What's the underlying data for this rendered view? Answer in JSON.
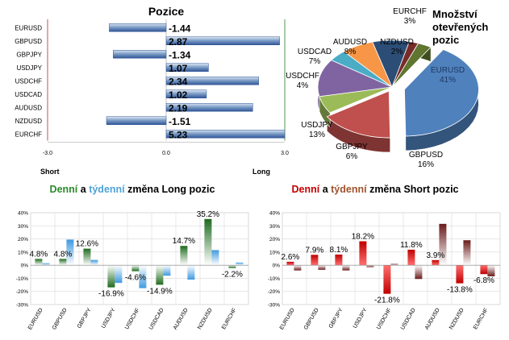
{
  "chart_data": [
    {
      "type": "bar",
      "orientation": "horizontal",
      "title": "Pozice",
      "categories": [
        "EURUSD",
        "GBPUSD",
        "GBPJPY",
        "USDJPY",
        "USDCHF",
        "USDCAD",
        "AUDUSD",
        "NZDUSD",
        "EURCHF"
      ],
      "values": [
        -1.44,
        2.87,
        -1.34,
        1.07,
        2.34,
        1.02,
        2.19,
        -1.51,
        5.23
      ],
      "value_labels": [
        "-1.44",
        "2.87",
        "-1.34",
        "1.07",
        "2.34",
        "1.02",
        "2.19",
        "-1.51",
        "5.23"
      ],
      "xlim": [
        -3,
        3
      ],
      "xticks": [
        "-3.0",
        "0.0",
        "3.0"
      ],
      "left_label": "Short",
      "right_label": "Long",
      "color": "#4f81bd"
    },
    {
      "type": "pie",
      "title_lines": [
        "Množství",
        "otevřených",
        "pozic"
      ],
      "slices": [
        {
          "label": "EURUSD",
          "value": 41,
          "text": "41%",
          "color": "#4f81bd"
        },
        {
          "label": "GBPUSD",
          "value": 16,
          "text": "16%",
          "color": "#c0504d"
        },
        {
          "label": "GBPJPY",
          "value": 6,
          "text": "6%",
          "color": "#9bbb59"
        },
        {
          "label": "USDJPY",
          "value": 13,
          "text": "13%",
          "color": "#8064a2"
        },
        {
          "label": "USDCHF",
          "value": 4,
          "text": "4%",
          "color": "#4bacc6"
        },
        {
          "label": "USDCAD",
          "value": 7,
          "text": "7%",
          "color": "#f79646"
        },
        {
          "label": "AUDUSD",
          "value": 8,
          "text": "8%",
          "color": "#2c4d75"
        },
        {
          "label": "NZDUSD",
          "value": 2,
          "text": "2%",
          "color": "#772c2a"
        },
        {
          "label": "EURCHF",
          "value": 3,
          "text": "3%",
          "color": "#5f7530"
        }
      ]
    },
    {
      "type": "bar",
      "title_parts": [
        {
          "text": "Denní",
          "color": "#2a8a2a"
        },
        {
          "text": " a ",
          "color": "#000000"
        },
        {
          "text": "týdenní",
          "color": "#4fa3d9"
        },
        {
          "text": " změna Long pozic",
          "color": "#000000"
        }
      ],
      "categories": [
        "EURUSD",
        "GBPUSD",
        "GBPJPY",
        "USDJPY",
        "USDCHF",
        "USDCAD",
        "AUDUSD",
        "NZDUSD",
        "EURCHF"
      ],
      "series": [
        {
          "name": "Denní",
          "color": "#3e8e3e",
          "values": [
            4.8,
            4.8,
            12.6,
            -16.9,
            -4.6,
            -14.9,
            14.7,
            35.2,
            -2.2
          ]
        },
        {
          "name": "Týdenní",
          "color": "#6fb6ea",
          "values": [
            1.5,
            19.5,
            4.0,
            -13.5,
            -17.5,
            -8.0,
            -11.0,
            11.5,
            2.0
          ]
        }
      ],
      "data_labels": [
        {
          "index": 0,
          "text": "4.8%"
        },
        {
          "index": 1,
          "text": "4.8%"
        },
        {
          "index": 2,
          "text": "12.6%"
        },
        {
          "index": 3,
          "text": "-16.9%"
        },
        {
          "index": 4,
          "text": "-4.6%"
        },
        {
          "index": 5,
          "text": "-14.9%"
        },
        {
          "index": 6,
          "text": "14.7%"
        },
        {
          "index": 7,
          "text": "35.2%"
        },
        {
          "index": 8,
          "text": "-2.2%"
        }
      ],
      "ylim": [
        -30,
        40
      ],
      "yticks": [
        "40%",
        "30%",
        "20%",
        "10%",
        "0%",
        "-10%",
        "-20%",
        "-30%"
      ]
    },
    {
      "type": "bar",
      "title_parts": [
        {
          "text": "Denní",
          "color": "#c00000"
        },
        {
          "text": " a ",
          "color": "#000000"
        },
        {
          "text": "týdenní",
          "color": "#a0522d"
        },
        {
          "text": " změna Short pozic",
          "color": "#000000"
        }
      ],
      "categories": [
        "EURUSD",
        "GBPUSD",
        "GBPJPY",
        "USDJPY",
        "USDCHF",
        "USDCAD",
        "AUDUSD",
        "NZDUSD",
        "EURCHF"
      ],
      "series": [
        {
          "name": "Denní",
          "color": "#c00000",
          "values": [
            2.6,
            7.9,
            8.1,
            18.2,
            -21.8,
            11.8,
            3.9,
            -13.8,
            -6.8
          ]
        },
        {
          "name": "Týdenní",
          "color": "#8b3a3a",
          "values": [
            -4.0,
            -3.5,
            -4.0,
            -1.5,
            1.0,
            -10.5,
            31.5,
            19.0,
            -8.5
          ]
        }
      ],
      "data_labels": [
        {
          "index": 0,
          "text": "2.6%"
        },
        {
          "index": 1,
          "text": "7.9%"
        },
        {
          "index": 2,
          "text": "8.1%"
        },
        {
          "index": 3,
          "text": "18.2%"
        },
        {
          "index": 4,
          "text": "-21.8%"
        },
        {
          "index": 5,
          "text": "11.8%"
        },
        {
          "index": 6,
          "text": "3.9%"
        },
        {
          "index": 7,
          "text": "-13.8%"
        },
        {
          "index": 8,
          "text": "-6.8%"
        }
      ],
      "ylim": [
        -30,
        40
      ],
      "yticks": [
        "40%",
        "30%",
        "20%",
        "10%",
        "0%",
        "-10%",
        "-20%",
        "-30%"
      ]
    }
  ]
}
